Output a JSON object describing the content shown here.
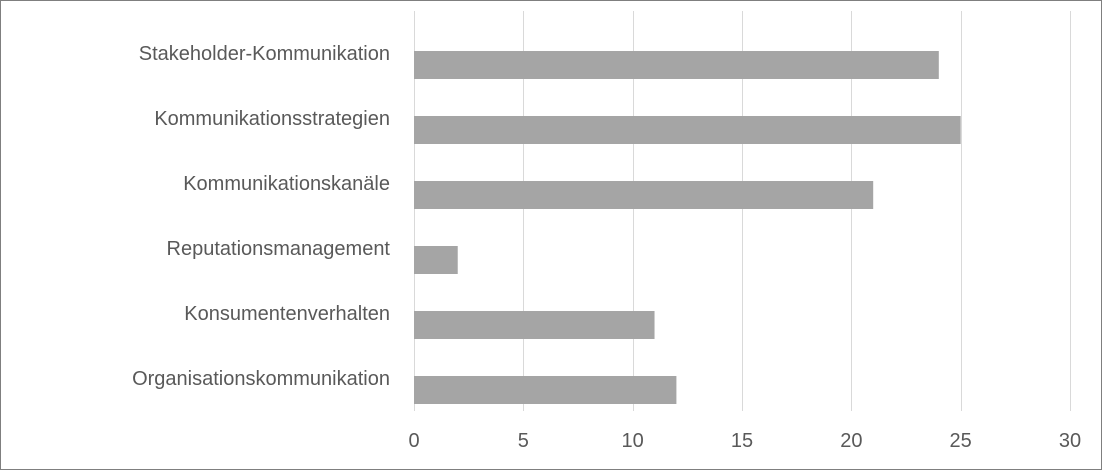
{
  "chart_data": {
    "type": "bar",
    "orientation": "horizontal",
    "categories": [
      "Stakeholder-Kommunikation",
      "Kommunikationsstrategien",
      "Kommunikationskanäle",
      "Reputationsmanagement",
      "Konsumentenverhalten",
      "Organisationskommunikation"
    ],
    "values": [
      24,
      25,
      21,
      2,
      11,
      12
    ],
    "xlim": [
      0,
      30
    ],
    "xticks": [
      0,
      5,
      10,
      15,
      20,
      25,
      30
    ],
    "grid": "vertical",
    "legend": "none",
    "bar_color": "#a5a5a5",
    "grid_color": "#d9d9d9",
    "text_color": "#595959"
  }
}
